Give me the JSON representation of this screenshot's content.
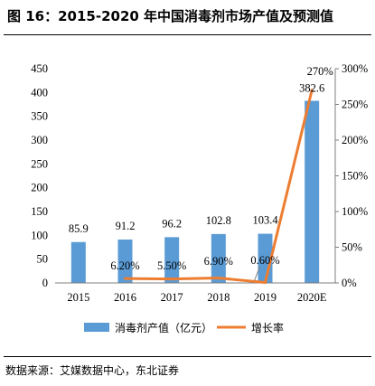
{
  "figure": {
    "title": "图 16：2015-2020 年中国消毒剂市场产值及预测值",
    "source": "数据来源：艾媒数据中心，东北证券"
  },
  "colors": {
    "bar": "#5B9BD5",
    "line": "#ED7D31",
    "axis": "#7f7f7f"
  },
  "chart_data": {
    "type": "bar",
    "categories": [
      "2015",
      "2016",
      "2017",
      "2018",
      "2019",
      "2020E"
    ],
    "series": [
      {
        "name": "消毒剂产值（亿元）",
        "type": "bar",
        "axis": "left",
        "values": [
          85.9,
          91.2,
          96.2,
          102.8,
          103.4,
          382.6
        ],
        "labels": [
          "85.9",
          "91.2",
          "96.2",
          "102.8",
          "103.4",
          "382.6"
        ]
      },
      {
        "name": "增长率",
        "type": "line",
        "axis": "right",
        "values": [
          null,
          6.2,
          5.5,
          6.9,
          0.6,
          270
        ],
        "labels": [
          "",
          "6.20%",
          "5.50%",
          "6.90%",
          "0.60%",
          "270%"
        ]
      }
    ],
    "left_axis": {
      "ylim": [
        0,
        450
      ],
      "ticks": [
        "0",
        "50",
        "100",
        "150",
        "200",
        "250",
        "300",
        "350",
        "400",
        "450"
      ]
    },
    "right_axis": {
      "ylim": [
        0,
        300
      ],
      "ticks": [
        "0%",
        "50%",
        "100%",
        "150%",
        "200%",
        "250%",
        "300%"
      ]
    },
    "grid": false,
    "legend_position": "bottom"
  }
}
